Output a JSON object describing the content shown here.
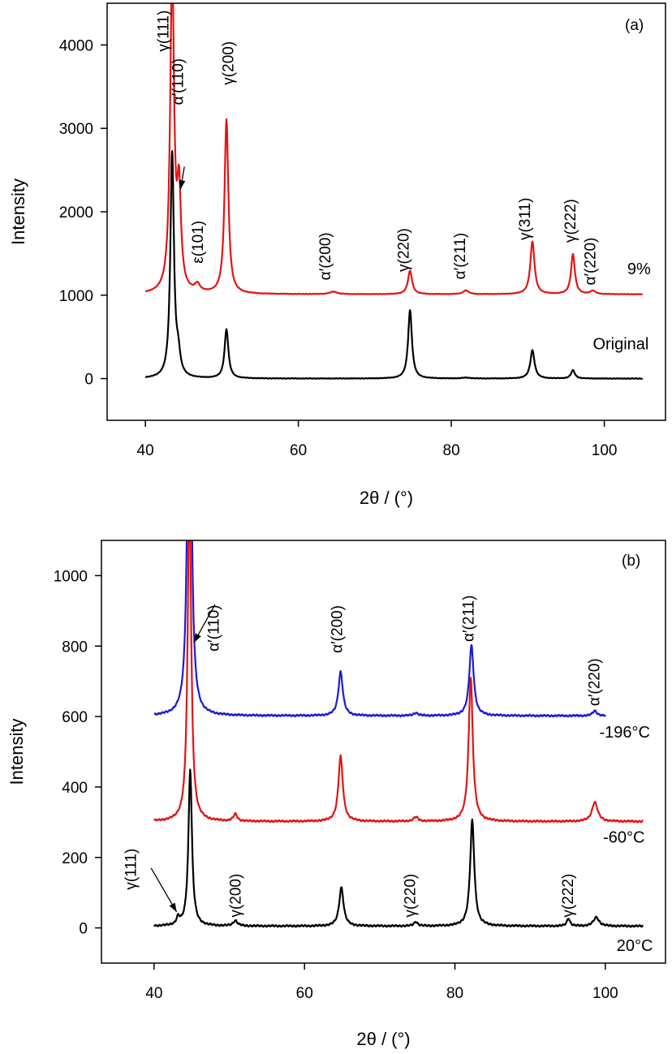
{
  "chart_data": [
    {
      "type": "line",
      "panel_label": "(a)",
      "xlabel": "2θ / (°)",
      "ylabel": "Intensity",
      "xlim": [
        35,
        108
      ],
      "ylim": [
        -500,
        4500
      ],
      "xticks": [
        40,
        60,
        80,
        100
      ],
      "yticks": [
        0,
        1000,
        2000,
        3000,
        4000
      ],
      "series": [
        {
          "name": "Original",
          "color": "#000000",
          "baseline": 0,
          "xrange": [
            40,
            105
          ],
          "peaks": [
            [
              43.5,
              2700,
              0.28
            ],
            [
              44.3,
              230,
              0.3
            ],
            [
              50.6,
              590,
              0.3
            ],
            [
              74.6,
              820,
              0.3
            ],
            [
              81.9,
              10,
              0.6
            ],
            [
              90.6,
              340,
              0.33
            ],
            [
              95.9,
              100,
              0.3
            ]
          ]
        },
        {
          "name": "9%",
          "color": "#e31414",
          "baseline": 1010,
          "xrange": [
            40,
            105
          ],
          "peaks": [
            [
              43.5,
              3900,
              0.3
            ],
            [
              44.4,
              1150,
              0.3
            ],
            [
              46.8,
              90,
              0.4
            ],
            [
              50.6,
              2090,
              0.3
            ],
            [
              64.6,
              30,
              0.6
            ],
            [
              74.6,
              280,
              0.33
            ],
            [
              81.9,
              45,
              0.45
            ],
            [
              90.6,
              630,
              0.33
            ],
            [
              95.9,
              480,
              0.3
            ],
            [
              98.5,
              40,
              0.4
            ]
          ]
        }
      ],
      "annotations": [
        {
          "text": "γ(111)",
          "x": 43.0,
          "y": 3920
        },
        {
          "text": "α′(110)",
          "x": 44.9,
          "y": 3280
        },
        {
          "text": "γ(200)",
          "x": 51.5,
          "y": 3520
        },
        {
          "text": "ε(101)",
          "x": 47.5,
          "y": 1380
        },
        {
          "text": "α′(200)",
          "x": 64.2,
          "y": 1180
        },
        {
          "text": "γ(220)",
          "x": 74.4,
          "y": 1280
        },
        {
          "text": "α′(211)",
          "x": 81.8,
          "y": 1190
        },
        {
          "text": "γ(311)",
          "x": 90.3,
          "y": 1660
        },
        {
          "text": "γ(222)",
          "x": 96.2,
          "y": 1630
        },
        {
          "text": "α′(220)",
          "x": 98.8,
          "y": 1120
        }
      ],
      "series_labels": [
        {
          "text": "9%",
          "x": 103.0,
          "y": 1250
        },
        {
          "text": "Original",
          "x": 98.5,
          "y": 350
        }
      ],
      "arrows": [
        {
          "from": [
            45.1,
            2540
          ],
          "to": [
            44.6,
            2270
          ]
        }
      ]
    },
    {
      "type": "line",
      "panel_label": "(b)",
      "xlabel": "2θ / (°)",
      "ylabel": "Intensity",
      "xlim": [
        33,
        108
      ],
      "ylim": [
        -100,
        1100
      ],
      "xticks": [
        40,
        60,
        80,
        100
      ],
      "yticks": [
        0,
        200,
        400,
        600,
        800,
        1000
      ],
      "series": [
        {
          "name": "20°C",
          "color": "#000000",
          "baseline": 5,
          "xrange": [
            40,
            105
          ],
          "peaks": [
            [
              43.2,
              20,
              0.25
            ],
            [
              44.8,
              445,
              0.28
            ],
            [
              50.8,
              15,
              0.35
            ],
            [
              64.9,
              110,
              0.35
            ],
            [
              74.8,
              12,
              0.3
            ],
            [
              82.3,
              300,
              0.33
            ],
            [
              95.1,
              22,
              0.25
            ],
            [
              98.8,
              25,
              0.45
            ]
          ]
        },
        {
          "name": "-60°C",
          "color": "#e31414",
          "baseline": 302,
          "xrange": [
            40,
            105
          ],
          "peaks": [
            [
              44.7,
              940,
              0.28
            ],
            [
              50.8,
              20,
              0.3
            ],
            [
              64.8,
              185,
              0.35
            ],
            [
              74.8,
              12,
              0.35
            ],
            [
              82.1,
              410,
              0.33
            ],
            [
              98.6,
              55,
              0.45
            ]
          ]
        },
        {
          "name": "-196°C",
          "color": "#1b1bd6",
          "baseline": 602,
          "xrange": [
            40,
            100
          ],
          "peaks": [
            [
              44.7,
              1350,
              0.28
            ],
            [
              64.8,
              125,
              0.35
            ],
            [
              74.8,
              8,
              0.35
            ],
            [
              82.2,
              200,
              0.35
            ],
            [
              98.6,
              14,
              0.35
            ]
          ]
        }
      ],
      "annotations": [
        {
          "text": "α′(110)",
          "x": 48.6,
          "y": 785
        },
        {
          "text": "α′(200)",
          "x": 65.0,
          "y": 780
        },
        {
          "text": "α′(211)",
          "x": 82.5,
          "y": 812
        },
        {
          "text": "α′(220)",
          "x": 99.2,
          "y": 630
        },
        {
          "text": "γ(111)",
          "x": 37.6,
          "y": 108
        },
        {
          "text": "γ(200)",
          "x": 51.5,
          "y": 30
        },
        {
          "text": "γ(220)",
          "x": 74.7,
          "y": 30
        },
        {
          "text": "γ(222)",
          "x": 95.7,
          "y": 30
        }
      ],
      "series_labels": [
        {
          "text": "-196°C",
          "x": 99.2,
          "y": 540
        },
        {
          "text": "-60°C",
          "x": 99.7,
          "y": 242
        },
        {
          "text": "20°C",
          "x": 101.5,
          "y": -65
        }
      ],
      "arrows": [
        {
          "from": [
            48.1,
            918
          ],
          "to": [
            45.3,
            810
          ]
        },
        {
          "from": [
            39.6,
            170
          ],
          "to": [
            43.0,
            45
          ]
        }
      ]
    }
  ]
}
